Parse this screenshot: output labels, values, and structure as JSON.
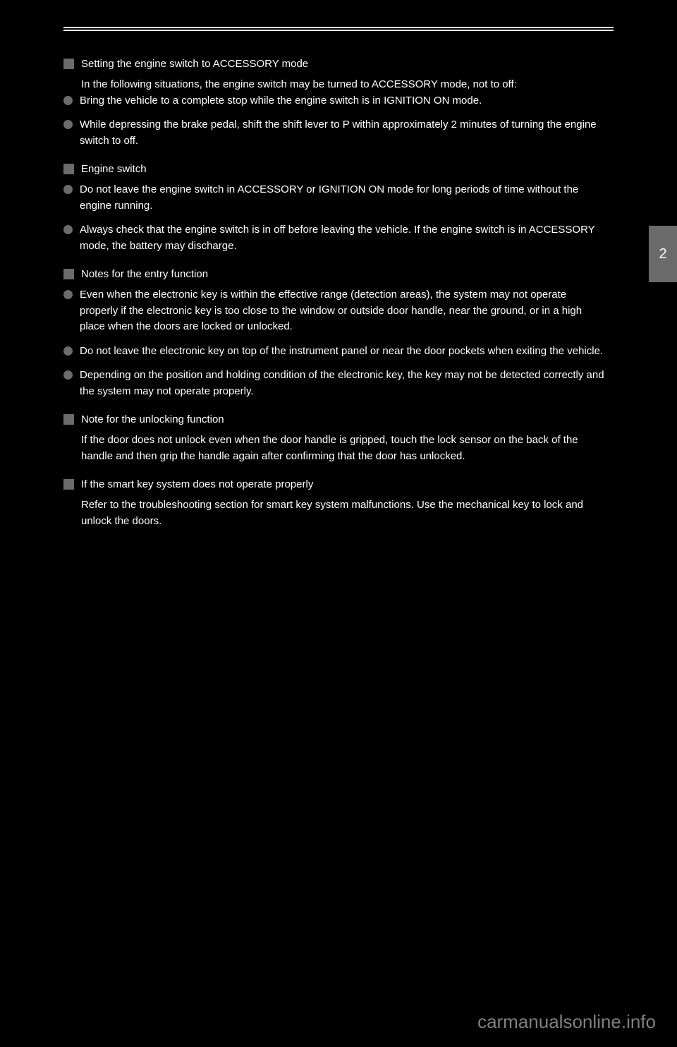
{
  "tab_number": "2",
  "sections": [
    {
      "title": "Setting the engine switch to ACCESSORY mode",
      "intro": "In the following situations, the engine switch may be turned to ACCESSORY mode, not to off:",
      "bullets": [
        "Bring the vehicle to a complete stop while the engine switch is in IGNITION ON mode.",
        "While depressing the brake pedal, shift the shift lever to P within approximately 2 minutes of turning the engine switch to off."
      ]
    },
    {
      "title": "Engine switch",
      "bullets": [
        "Do not leave the engine switch in ACCESSORY or IGNITION ON mode for long periods of time without the engine running.",
        "Always check that the engine switch is in off before leaving the vehicle. If the engine switch is in ACCESSORY mode, the battery may discharge."
      ]
    },
    {
      "title": "Notes for the entry function",
      "bullets": [
        "Even when the electronic key is within the effective range (detection areas), the system may not operate properly if the electronic key is too close to the window or outside door handle, near the ground, or in a high place when the doors are locked or unlocked.",
        "Do not leave the electronic key on top of the instrument panel or near the door pockets when exiting the vehicle.",
        "Depending on the position and holding condition of the electronic key, the key may not be detected correctly and the system may not operate properly."
      ]
    },
    {
      "title": "Note for the unlocking function",
      "body": "If the door does not unlock even when the door handle is gripped, touch the lock sensor on the back of the handle and then grip the handle again after confirming that the door has unlocked."
    },
    {
      "title": "If the smart key system does not operate properly",
      "body": "Refer to the troubleshooting section for smart key system malfunctions. Use the mechanical key to lock and unlock the doors."
    }
  ],
  "watermark": "carmanualsonline.info",
  "colors": {
    "background": "#000000",
    "text": "#ffffff",
    "marker": "#6b6b6b",
    "watermark": "#808080"
  }
}
